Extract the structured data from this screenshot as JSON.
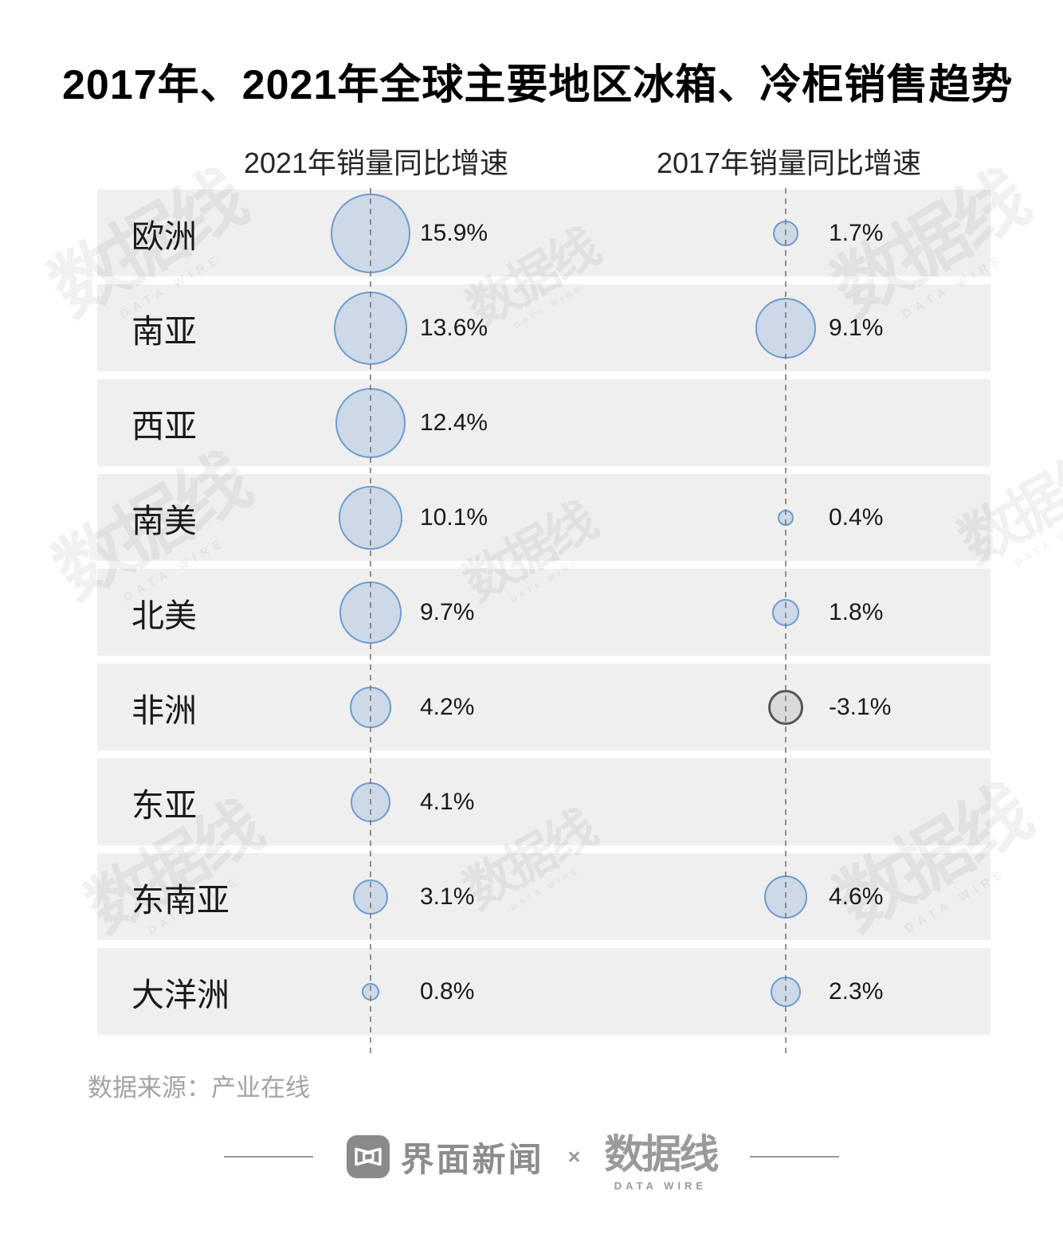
{
  "title": "2017年、2021年全球主要地区冰箱、冷柜销售趋势",
  "column_headers": {
    "left": "2021年销量同比增速",
    "right": "2017年销量同比增速"
  },
  "chart_data": {
    "type": "bubble",
    "categories": [
      "欧洲",
      "南亚",
      "西亚",
      "南美",
      "北美",
      "非洲",
      "东亚",
      "东南亚",
      "大洋洲"
    ],
    "series": [
      {
        "name": "2021年销量同比增速",
        "values": [
          15.9,
          13.6,
          12.4,
          10.1,
          9.7,
          4.2,
          4.1,
          3.1,
          0.8
        ]
      },
      {
        "name": "2017年销量同比增速",
        "values": [
          1.7,
          9.1,
          null,
          0.4,
          1.8,
          -3.1,
          null,
          4.6,
          2.3
        ]
      }
    ],
    "value_suffix": "%",
    "legend_position": "none",
    "grid": "dashed-vertical-guides",
    "note": "bubble area proportional to absolute value; negative values drawn gray"
  },
  "colors": {
    "bubble_fill": "#cdd9e7",
    "bubble_stroke": "#6d9bd0",
    "negative_fill": "#d9d9d9",
    "negative_stroke": "#565656",
    "row_background": "#efefef",
    "guide_line": "#9b9b9b"
  },
  "source": "数据来源：产业在线",
  "watermark": {
    "text": "数据线",
    "subtext": "DATA WIRE"
  },
  "footer": {
    "jiemian_label": "界面新闻",
    "separator": "×",
    "datawire_label": "数据线",
    "datawire_sub": "DATA WIRE"
  }
}
